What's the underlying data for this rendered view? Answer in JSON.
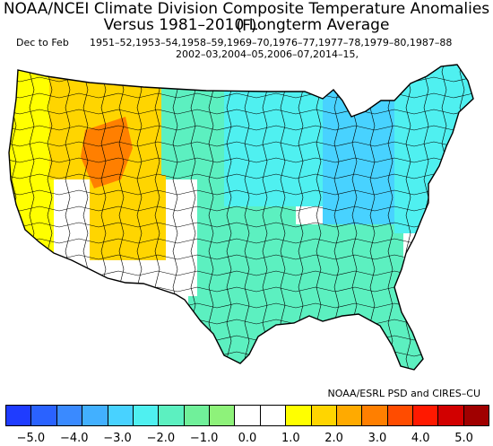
{
  "header": {
    "title_line1": "NOAA/NCEI Climate Division Composite Temperature Anomalies (F)",
    "title_line2": "Versus 1981–2010 Longterm Average",
    "season": "Dec to Feb",
    "years_line1": "1951–52,1953–54,1958–59,1969–70,1976–77,1977–78,1979–80,1987–88",
    "years_line2": "2002–03,2004–05,2006–07,2014–15,"
  },
  "credit": "NOAA/ESRL PSD and CIRES–CU",
  "colorbar": {
    "colors": [
      "#1f3cff",
      "#2a62ff",
      "#3a8aff",
      "#42b0ff",
      "#48d2ff",
      "#4ff0f0",
      "#5cf0c0",
      "#70f09a",
      "#8ef27a",
      "#ffffff",
      "#ffffff",
      "#ffff00",
      "#ffd500",
      "#ffaa00",
      "#ff7f00",
      "#ff4c00",
      "#ff1900",
      "#d20000",
      "#a00000"
    ],
    "tick_labels": [
      "−5.0",
      "−4.0",
      "−3.0",
      "−2.0",
      "−1.0",
      "0.0",
      "1.0",
      "2.0",
      "3.0",
      "4.0",
      "5.0"
    ]
  },
  "map": {
    "regions": [
      {
        "name": "pacific-northwest",
        "anomaly": 1.0
      },
      {
        "name": "northern-rockies",
        "anomaly": 2.0
      },
      {
        "name": "great-basin-core",
        "anomaly": 3.0
      },
      {
        "name": "california-coast",
        "anomaly": 1.0
      },
      {
        "name": "great-basin-south",
        "anomaly": 1.5
      },
      {
        "name": "southwest-desert",
        "anomaly": 0.0
      },
      {
        "name": "southern-rockies",
        "anomaly": 0.0
      },
      {
        "name": "northern-plains",
        "anomaly": -1.5
      },
      {
        "name": "central-plains",
        "anomaly": -1.5
      },
      {
        "name": "south-central",
        "anomaly": -1.8
      },
      {
        "name": "texas",
        "anomaly": -1.5
      },
      {
        "name": "midwest",
        "anomaly": -2.5
      },
      {
        "name": "great-lakes",
        "anomaly": -3.0
      },
      {
        "name": "southeast",
        "anomaly": -2.0
      },
      {
        "name": "florida",
        "anomaly": -1.8
      },
      {
        "name": "mid-atlantic",
        "anomaly": -2.5
      },
      {
        "name": "new-england",
        "anomaly": -2.5
      }
    ]
  }
}
